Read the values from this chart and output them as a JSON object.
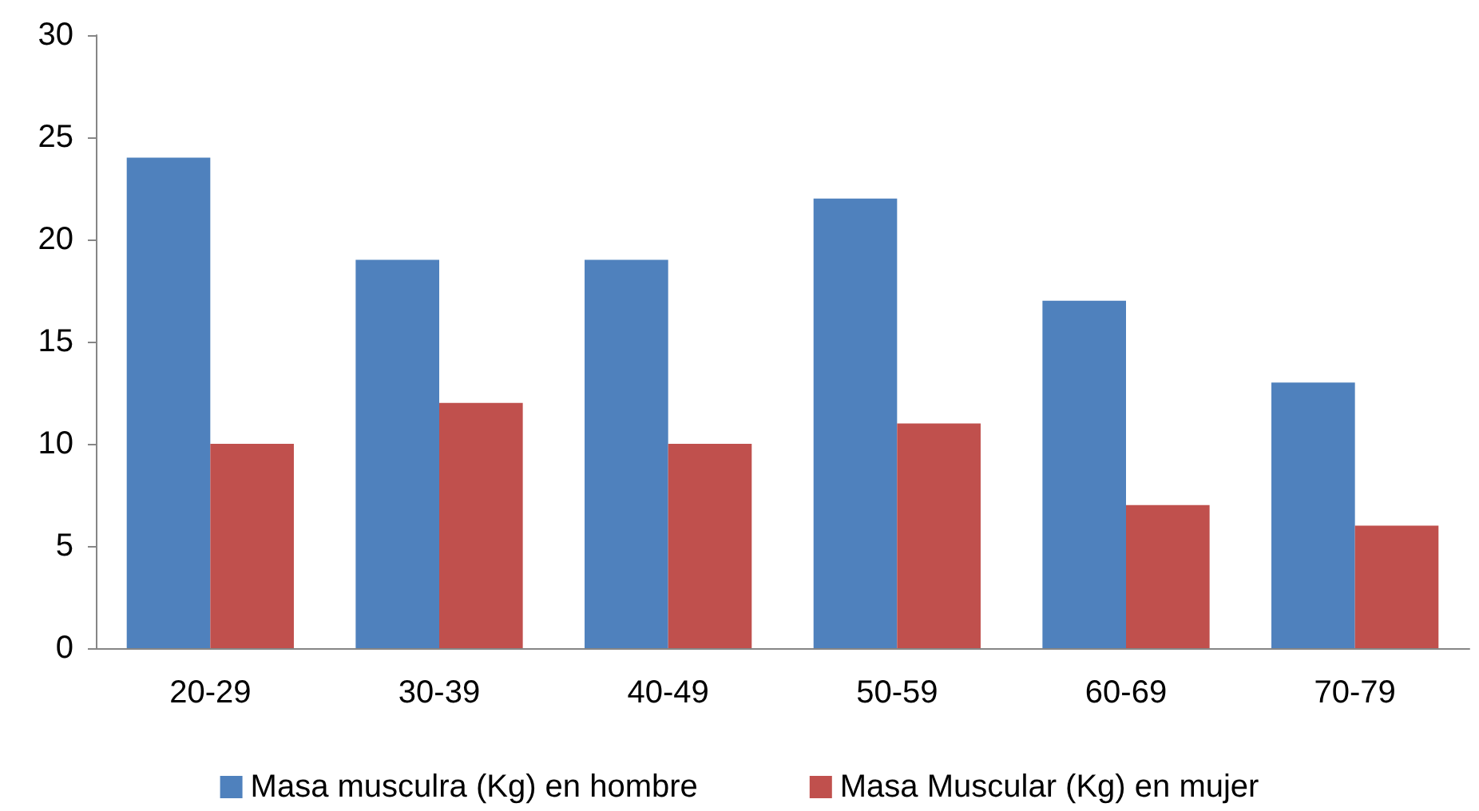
{
  "chart_data": {
    "type": "bar",
    "categories": [
      "20-29",
      "30-39",
      "40-49",
      "50-59",
      "60-69",
      "70-79"
    ],
    "series": [
      {
        "name": "Masa musculra (Kg) en hombre",
        "color": "#4f81bd",
        "values": [
          24,
          19,
          19,
          22,
          17,
          13
        ]
      },
      {
        "name": "Masa Muscular (Kg) en mujer",
        "color": "#c0504d",
        "values": [
          10,
          12,
          10,
          11,
          7,
          6
        ]
      }
    ],
    "ylim": [
      0,
      30
    ],
    "yticks": [
      0,
      5,
      10,
      15,
      20,
      25,
      30
    ],
    "grid": false,
    "legend": "bottom"
  }
}
